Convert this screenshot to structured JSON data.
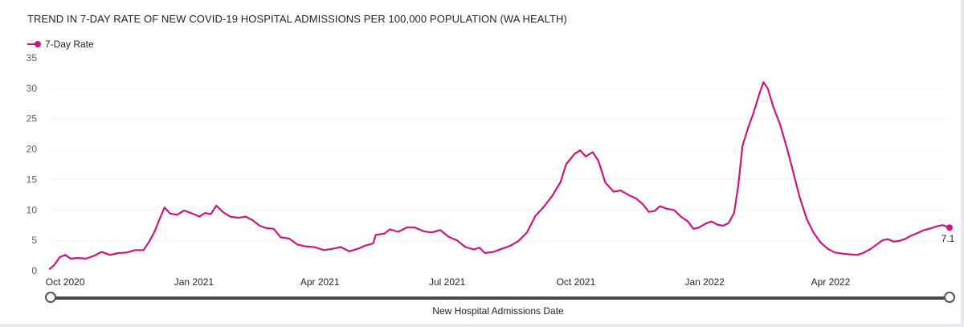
{
  "title": "TREND IN 7-DAY RATE OF NEW COVID-19 HOSPITAL ADMISSIONS PER 100,000 POPULATION (WA HEALTH)",
  "legend_label": "7-Day Rate",
  "x_axis_title": "New Hospital Admissions Date",
  "series_color": "#c8177f",
  "chart_data": {
    "type": "line",
    "title": "TREND IN 7-DAY RATE OF NEW COVID-19 HOSPITAL ADMISSIONS PER 100,000 POPULATION (WA HEALTH)",
    "xlabel": "New Hospital Admissions Date",
    "ylabel": "",
    "ylim": [
      0,
      35
    ],
    "y_ticks": [
      0,
      5,
      10,
      15,
      20,
      25,
      30,
      35
    ],
    "xlim": [
      "2020-09-20",
      "2022-06-25"
    ],
    "x_ticks": [
      {
        "date": "2020-10-01",
        "label": "Oct 2020"
      },
      {
        "date": "2021-01-01",
        "label": "Jan 2021"
      },
      {
        "date": "2021-04-01",
        "label": "Apr 2021"
      },
      {
        "date": "2021-07-01",
        "label": "Jul 2021"
      },
      {
        "date": "2021-10-01",
        "label": "Oct 2021"
      },
      {
        "date": "2022-01-01",
        "label": "Jan 2022"
      },
      {
        "date": "2022-04-01",
        "label": "Apr 2022"
      }
    ],
    "grid": "horizontal dotted",
    "legend": "top-left",
    "series": [
      {
        "name": "7-Day Rate",
        "color": "#c8177f",
        "end_label": "7.1",
        "points": [
          [
            "2020-09-20",
            0.3
          ],
          [
            "2020-09-23",
            0.9
          ],
          [
            "2020-09-27",
            2.2
          ],
          [
            "2020-10-01",
            2.6
          ],
          [
            "2020-10-05",
            2.0
          ],
          [
            "2020-10-10",
            2.1
          ],
          [
            "2020-10-16",
            2.0
          ],
          [
            "2020-10-22",
            2.5
          ],
          [
            "2020-10-27",
            3.1
          ],
          [
            "2020-11-02",
            2.6
          ],
          [
            "2020-11-08",
            2.9
          ],
          [
            "2020-11-14",
            3.0
          ],
          [
            "2020-11-20",
            3.4
          ],
          [
            "2020-11-26",
            3.4
          ],
          [
            "2020-11-30",
            4.8
          ],
          [
            "2020-12-04",
            6.5
          ],
          [
            "2020-12-08",
            8.8
          ],
          [
            "2020-12-11",
            10.4
          ],
          [
            "2020-12-15",
            9.4
          ],
          [
            "2020-12-20",
            9.2
          ],
          [
            "2020-12-25",
            9.9
          ],
          [
            "2021-01-01",
            9.3
          ],
          [
            "2021-01-05",
            8.9
          ],
          [
            "2021-01-09",
            9.5
          ],
          [
            "2021-01-13",
            9.3
          ],
          [
            "2021-01-17",
            10.7
          ],
          [
            "2021-01-22",
            9.6
          ],
          [
            "2021-01-27",
            8.9
          ],
          [
            "2021-02-02",
            8.7
          ],
          [
            "2021-02-07",
            8.9
          ],
          [
            "2021-02-12",
            8.3
          ],
          [
            "2021-02-17",
            7.4
          ],
          [
            "2021-02-22",
            7.0
          ],
          [
            "2021-02-27",
            6.9
          ],
          [
            "2021-03-04",
            5.5
          ],
          [
            "2021-03-10",
            5.3
          ],
          [
            "2021-03-16",
            4.3
          ],
          [
            "2021-03-22",
            4.0
          ],
          [
            "2021-03-28",
            3.9
          ],
          [
            "2021-04-04",
            3.4
          ],
          [
            "2021-04-10",
            3.6
          ],
          [
            "2021-04-16",
            3.9
          ],
          [
            "2021-04-22",
            3.2
          ],
          [
            "2021-04-28",
            3.6
          ],
          [
            "2021-05-03",
            4.1
          ],
          [
            "2021-05-09",
            4.5
          ],
          [
            "2021-05-11",
            5.9
          ],
          [
            "2021-05-17",
            6.1
          ],
          [
            "2021-05-21",
            6.8
          ],
          [
            "2021-05-27",
            6.4
          ],
          [
            "2021-06-02",
            7.1
          ],
          [
            "2021-06-08",
            7.1
          ],
          [
            "2021-06-14",
            6.5
          ],
          [
            "2021-06-20",
            6.3
          ],
          [
            "2021-06-26",
            6.7
          ],
          [
            "2021-07-02",
            5.6
          ],
          [
            "2021-07-08",
            5.0
          ],
          [
            "2021-07-14",
            3.9
          ],
          [
            "2021-07-20",
            3.5
          ],
          [
            "2021-07-24",
            3.8
          ],
          [
            "2021-07-28",
            2.9
          ],
          [
            "2021-08-03",
            3.1
          ],
          [
            "2021-08-09",
            3.6
          ],
          [
            "2021-08-15",
            4.1
          ],
          [
            "2021-08-21",
            4.9
          ],
          [
            "2021-08-27",
            6.3
          ],
          [
            "2021-09-02",
            9.0
          ],
          [
            "2021-09-08",
            10.5
          ],
          [
            "2021-09-14",
            12.3
          ],
          [
            "2021-09-20",
            14.6
          ],
          [
            "2021-09-24",
            17.5
          ],
          [
            "2021-09-30",
            19.2
          ],
          [
            "2021-10-04",
            19.8
          ],
          [
            "2021-10-08",
            18.8
          ],
          [
            "2021-10-13",
            19.5
          ],
          [
            "2021-10-17",
            18.1
          ],
          [
            "2021-10-22",
            14.5
          ],
          [
            "2021-10-28",
            13.0
          ],
          [
            "2021-11-02",
            13.2
          ],
          [
            "2021-11-08",
            12.4
          ],
          [
            "2021-11-13",
            11.9
          ],
          [
            "2021-11-18",
            10.9
          ],
          [
            "2021-11-22",
            9.7
          ],
          [
            "2021-11-26",
            9.8
          ],
          [
            "2021-11-30",
            10.6
          ],
          [
            "2021-12-05",
            10.2
          ],
          [
            "2021-12-10",
            10.0
          ],
          [
            "2021-12-15",
            8.9
          ],
          [
            "2021-12-20",
            8.1
          ],
          [
            "2021-12-24",
            6.9
          ],
          [
            "2021-12-28",
            7.1
          ],
          [
            "2022-01-02",
            7.8
          ],
          [
            "2022-01-06",
            8.1
          ],
          [
            "2022-01-10",
            7.6
          ],
          [
            "2022-01-14",
            7.4
          ],
          [
            "2022-01-18",
            7.8
          ],
          [
            "2022-01-22",
            9.5
          ],
          [
            "2022-01-25",
            14.0
          ],
          [
            "2022-01-28",
            20.5
          ],
          [
            "2022-02-01",
            23.5
          ],
          [
            "2022-02-05",
            26.0
          ],
          [
            "2022-02-09",
            29.0
          ],
          [
            "2022-02-12",
            31.0
          ],
          [
            "2022-02-15",
            30.0
          ],
          [
            "2022-02-19",
            27.0
          ],
          [
            "2022-02-24",
            24.0
          ],
          [
            "2022-03-01",
            20.0
          ],
          [
            "2022-03-05",
            16.5
          ],
          [
            "2022-03-10",
            12.0
          ],
          [
            "2022-03-15",
            8.5
          ],
          [
            "2022-03-20",
            6.2
          ],
          [
            "2022-03-25",
            4.6
          ],
          [
            "2022-03-30",
            3.6
          ],
          [
            "2022-04-04",
            3.0
          ],
          [
            "2022-04-10",
            2.8
          ],
          [
            "2022-04-15",
            2.7
          ],
          [
            "2022-04-20",
            2.6
          ],
          [
            "2022-04-24",
            2.9
          ],
          [
            "2022-04-29",
            3.5
          ],
          [
            "2022-05-04",
            4.3
          ],
          [
            "2022-05-08",
            5.0
          ],
          [
            "2022-05-12",
            5.2
          ],
          [
            "2022-05-16",
            4.8
          ],
          [
            "2022-05-20",
            4.9
          ],
          [
            "2022-05-24",
            5.2
          ],
          [
            "2022-05-28",
            5.7
          ],
          [
            "2022-06-02",
            6.2
          ],
          [
            "2022-06-07",
            6.7
          ],
          [
            "2022-06-12",
            7.0
          ],
          [
            "2022-06-16",
            7.3
          ],
          [
            "2022-06-20",
            7.5
          ],
          [
            "2022-06-25",
            7.1
          ]
        ]
      }
    ]
  }
}
